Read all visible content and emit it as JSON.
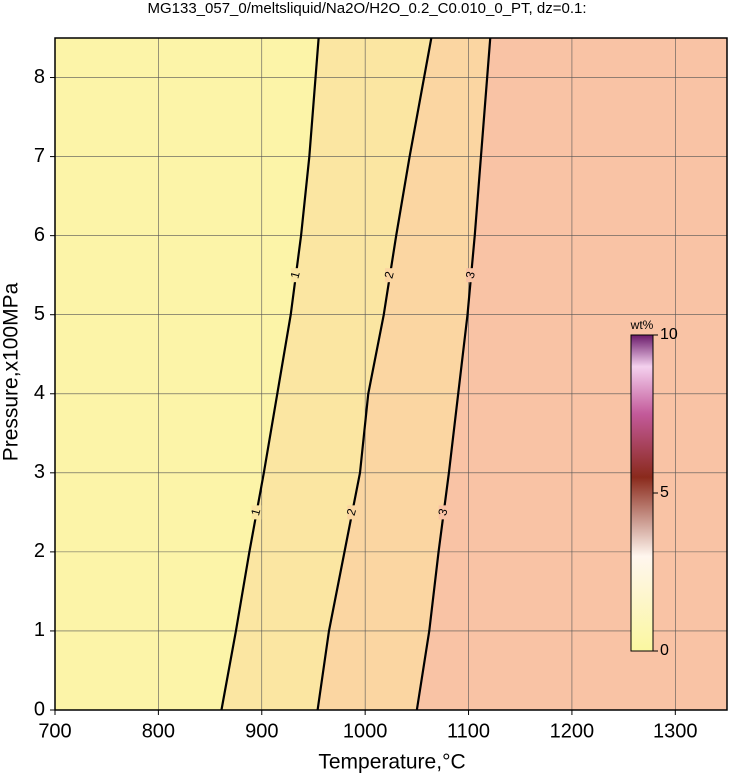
{
  "chart_data": {
    "type": "contour",
    "title": "MG133_057_0/meltsliquid/Na2O/H2O_0.2_C0.010_0_PT, dz=0.1:",
    "x_label": "Temperature,°C",
    "y_label": "Pressure,x100MPa",
    "xlim": [
      700,
      1350
    ],
    "ylim": [
      0,
      8.5
    ],
    "xticks": [
      700,
      800,
      900,
      1000,
      1100,
      1200,
      1300
    ],
    "yticks": [
      0,
      1,
      2,
      3,
      4,
      5,
      6,
      7,
      8
    ],
    "grid": true,
    "contours": [
      {
        "level": 1,
        "x": [
          861,
          875,
          888,
          902,
          915,
          928,
          938,
          946,
          955
        ],
        "y": [
          0,
          1,
          2,
          3,
          4,
          5,
          6,
          7,
          8.5
        ]
      },
      {
        "level": 2,
        "x": [
          954,
          965,
          980,
          995,
          1003,
          1018,
          1030,
          1043,
          1064
        ],
        "y": [
          0,
          1,
          2,
          3,
          4,
          5,
          6,
          7,
          8.5
        ]
      },
      {
        "level": 3,
        "x": [
          1050,
          1062,
          1071,
          1081,
          1090,
          1099,
          1106,
          1112,
          1121
        ],
        "y": [
          0,
          1,
          2,
          3,
          4,
          5,
          6,
          7,
          8.5
        ]
      }
    ],
    "colorbar": {
      "label": "wt%",
      "clim": [
        0,
        10
      ],
      "ticks": [
        0,
        5,
        10
      ]
    }
  }
}
